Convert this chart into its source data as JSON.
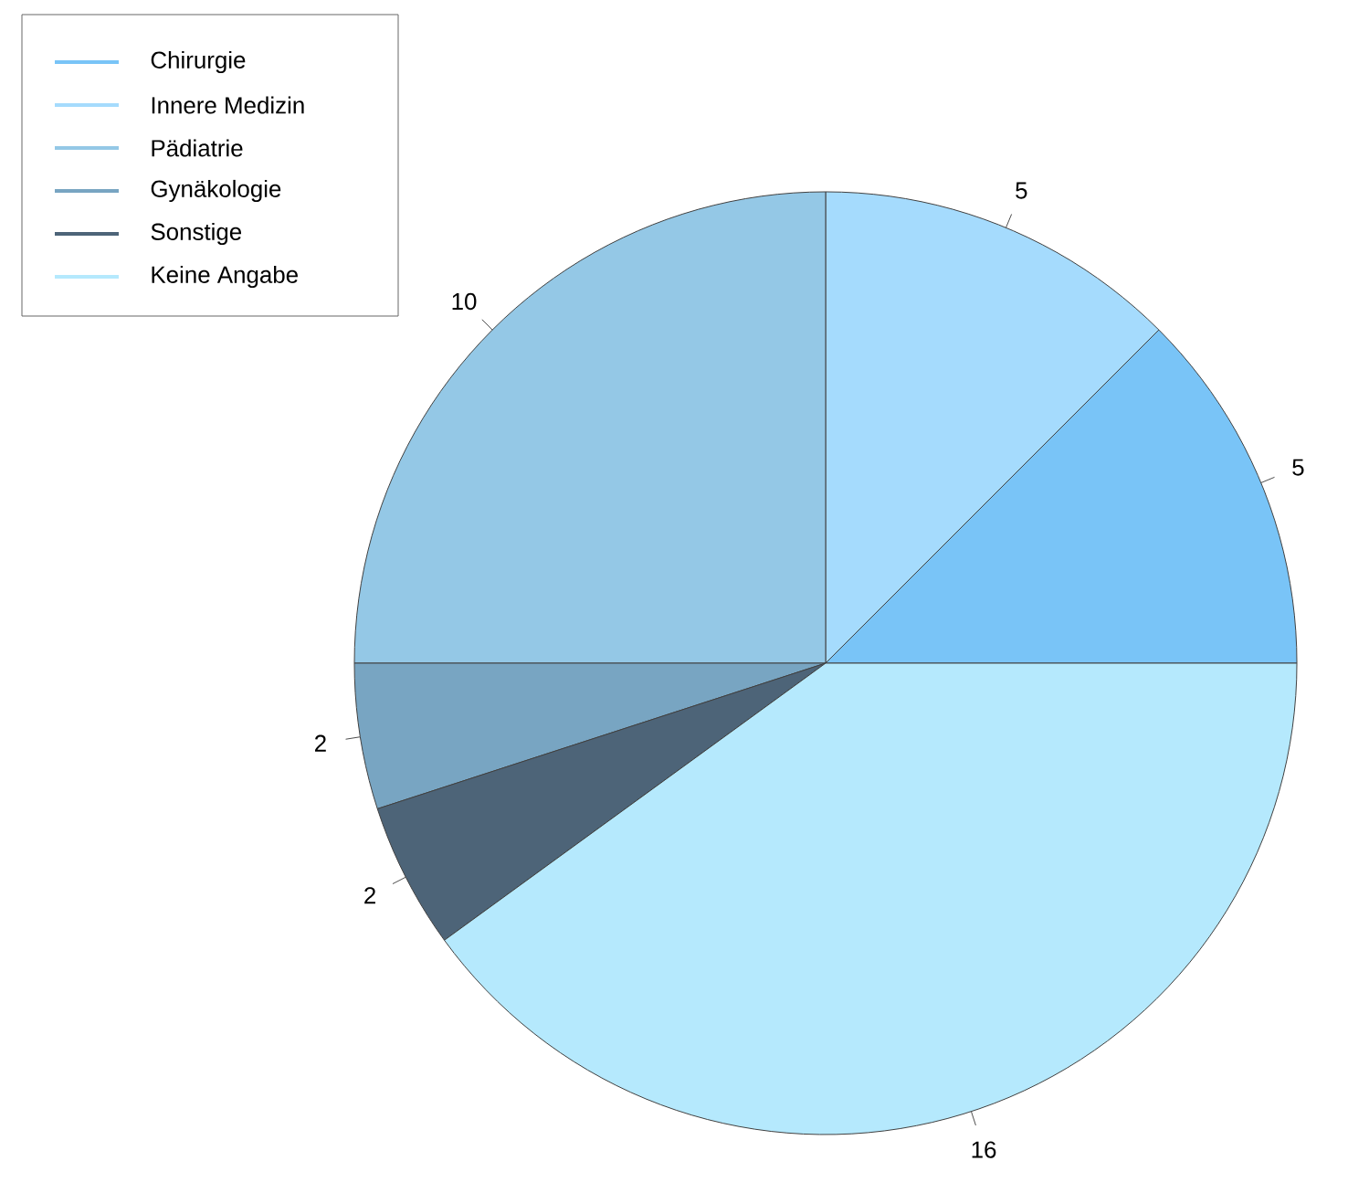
{
  "chart_data": {
    "type": "pie",
    "categories": [
      "Chirurgie",
      "Innere Medizin",
      "Pädiatrie",
      "Gynäkologie",
      "Sonstige",
      "Keine Angabe"
    ],
    "values": [
      5,
      5,
      10,
      2,
      2,
      16
    ],
    "colors": [
      "#79c4f7",
      "#a5dbfd",
      "#94c8e6",
      "#78a5c2",
      "#4d6478",
      "#b5e9fd"
    ],
    "data_labels": true,
    "legend": "top left"
  }
}
